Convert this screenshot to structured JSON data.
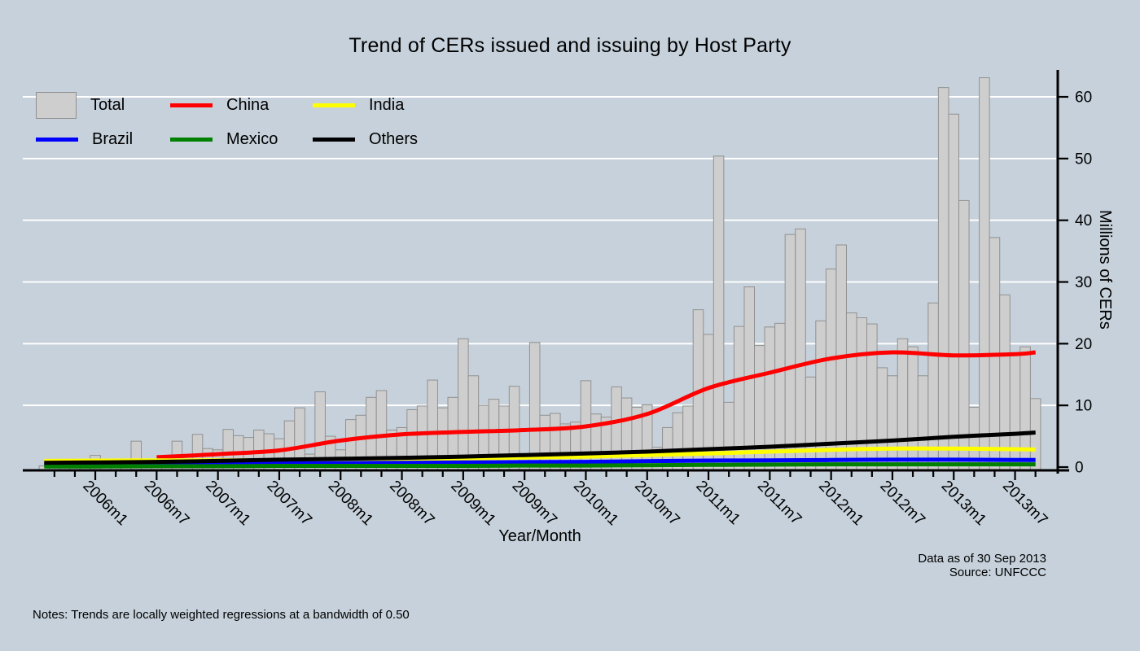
{
  "title": "Trend of CERs issued and issuing by Host Party",
  "axes": {
    "x_label": "Year/Month",
    "y_label": "Millions of CERs",
    "y_ticks": [
      0,
      10,
      20,
      30,
      40,
      50,
      60
    ],
    "x_major_tick_labels": [
      "2006m1",
      "2006m7",
      "2007m1",
      "2007m7",
      "2008m1",
      "2008m7",
      "2009m1",
      "2009m7",
      "2010m1",
      "2010m7",
      "2011m1",
      "2011m7",
      "2012m1",
      "2012m7",
      "2013m1",
      "2013m7"
    ]
  },
  "legend": {
    "rows": [
      [
        {
          "label": "Total",
          "swatch": "rect",
          "color": "#cecece"
        },
        {
          "label": "China",
          "swatch": "line",
          "color": "#ff0000"
        },
        {
          "label": "India",
          "swatch": "line",
          "color": "#ffff00"
        }
      ],
      [
        {
          "label": "Brazil",
          "swatch": "line",
          "color": "#0000ff"
        },
        {
          "label": "Mexico",
          "swatch": "line",
          "color": "#008000"
        },
        {
          "label": "Others",
          "swatch": "line",
          "color": "#000000"
        }
      ]
    ]
  },
  "notes": "Notes: Trends are locally weighted regressions at a bandwidth of 0.50",
  "source_note": [
    "Data as of 30 Sep 2013",
    "Source: UNFCCC"
  ],
  "colors": {
    "background": "#c6d1db",
    "bar_fill": "#cecece",
    "bar_border": "#919191",
    "gridline": "#ffffff",
    "axis": "#000000"
  },
  "chart_data": {
    "type": "bar+line",
    "title": "Trend of CERs issued and issuing by Host Party",
    "xlabel": "Year/Month",
    "ylabel": "Millions of CERs",
    "ylim": [
      0,
      63.5
    ],
    "grid": "horizontal-white",
    "legend_position": "top-left",
    "x": [
      "2005m8",
      "2005m9",
      "2005m10",
      "2005m11",
      "2005m12",
      "2006m1",
      "2006m2",
      "2006m3",
      "2006m4",
      "2006m5",
      "2006m6",
      "2006m7",
      "2006m8",
      "2006m9",
      "2006m10",
      "2006m11",
      "2006m12",
      "2007m1",
      "2007m2",
      "2007m3",
      "2007m4",
      "2007m5",
      "2007m6",
      "2007m7",
      "2007m8",
      "2007m9",
      "2007m10",
      "2007m11",
      "2007m12",
      "2008m1",
      "2008m2",
      "2008m3",
      "2008m4",
      "2008m5",
      "2008m6",
      "2008m7",
      "2008m8",
      "2008m9",
      "2008m10",
      "2008m11",
      "2008m12",
      "2009m1",
      "2009m2",
      "2009m3",
      "2009m4",
      "2009m5",
      "2009m6",
      "2009m7",
      "2009m8",
      "2009m9",
      "2009m10",
      "2009m11",
      "2009m12",
      "2010m1",
      "2010m2",
      "2010m3",
      "2010m4",
      "2010m5",
      "2010m6",
      "2010m7",
      "2010m8",
      "2010m9",
      "2010m10",
      "2010m11",
      "2010m12",
      "2011m1",
      "2011m2",
      "2011m3",
      "2011m4",
      "2011m5",
      "2011m6",
      "2011m7",
      "2011m8",
      "2011m9",
      "2011m10",
      "2011m11",
      "2011m12",
      "2012m1",
      "2012m2",
      "2012m3",
      "2012m4",
      "2012m5",
      "2012m6",
      "2012m7",
      "2012m8",
      "2012m9",
      "2012m10",
      "2012m11",
      "2012m12",
      "2013m1",
      "2013m2",
      "2013m3",
      "2013m4",
      "2013m5",
      "2013m6",
      "2013m7",
      "2013m8",
      "2013m9"
    ],
    "bar_series": {
      "name": "Total",
      "values": [
        0.2,
        0.3,
        0.3,
        0.4,
        0.6,
        1.9,
        0.5,
        0.8,
        1.0,
        4.2,
        1.0,
        1.1,
        1.5,
        4.2,
        2.0,
        5.3,
        3.0,
        2.8,
        6.1,
        5.1,
        4.8,
        6.0,
        5.4,
        4.6,
        7.5,
        9.6,
        2.1,
        12.2,
        5.0,
        2.8,
        7.7,
        8.4,
        11.3,
        12.4,
        6.0,
        6.4,
        9.3,
        9.9,
        14.1,
        9.6,
        11.3,
        20.8,
        14.8,
        10.0,
        11.0,
        9.9,
        13.1,
        2.1,
        20.2,
        8.4,
        8.7,
        7.0,
        7.3,
        14.0,
        8.6,
        8.1,
        13.0,
        11.2,
        9.7,
        10.1,
        3.2,
        6.4,
        8.8,
        9.9,
        25.5,
        21.5,
        50.4,
        10.5,
        22.8,
        29.2,
        19.7,
        22.7,
        23.3,
        37.7,
        38.6,
        14.6,
        23.7,
        32.1,
        36.0,
        25.0,
        24.2,
        23.2,
        16.1,
        14.8,
        20.8,
        19.5,
        14.8,
        26.6,
        61.5,
        57.2,
        43.2,
        9.7,
        63.1,
        37.2,
        27.9,
        18.4,
        19.5,
        11.1
      ]
    },
    "line_series": [
      {
        "name": "China",
        "color": "#ff0000",
        "x": [
          "2006m7",
          "2007m1",
          "2007m7",
          "2008m1",
          "2008m7",
          "2009m1",
          "2009m7",
          "2010m1",
          "2010m7",
          "2011m1",
          "2011m7",
          "2012m1",
          "2012m7",
          "2013m1",
          "2013m7",
          "2013m9"
        ],
        "values": [
          1.6,
          2.1,
          2.7,
          4.3,
          5.3,
          5.7,
          6.0,
          6.6,
          8.6,
          12.8,
          15.3,
          17.6,
          18.6,
          18.1,
          18.3,
          18.6
        ]
      },
      {
        "name": "India",
        "color": "#ffff00",
        "x": [
          "2005m8",
          "2006m1",
          "2006m7",
          "2007m1",
          "2007m7",
          "2008m1",
          "2008m7",
          "2009m1",
          "2009m7",
          "2010m1",
          "2010m7",
          "2011m1",
          "2011m7",
          "2012m1",
          "2012m7",
          "2013m1",
          "2013m7",
          "2013m9"
        ],
        "values": [
          1.0,
          1.05,
          1.1,
          1.1,
          1.1,
          1.15,
          1.3,
          1.4,
          1.55,
          1.7,
          1.95,
          2.2,
          2.5,
          2.8,
          3.0,
          3.0,
          2.9,
          2.85
        ]
      },
      {
        "name": "Brazil",
        "color": "#0000ff",
        "x": [
          "2005m8",
          "2006m1",
          "2006m7",
          "2007m1",
          "2007m7",
          "2008m1",
          "2008m7",
          "2009m1",
          "2009m7",
          "2010m1",
          "2010m7",
          "2011m1",
          "2011m7",
          "2012m1",
          "2012m7",
          "2013m1",
          "2013m7",
          "2013m9"
        ],
        "values": [
          0.35,
          0.4,
          0.5,
          0.55,
          0.6,
          0.65,
          0.7,
          0.75,
          0.8,
          0.85,
          0.95,
          1.05,
          1.1,
          1.15,
          1.2,
          1.2,
          1.15,
          1.15
        ]
      },
      {
        "name": "Mexico",
        "color": "#008000",
        "x": [
          "2005m8",
          "2006m1",
          "2006m7",
          "2007m1",
          "2007m7",
          "2008m1",
          "2008m7",
          "2009m1",
          "2009m7",
          "2010m1",
          "2010m7",
          "2011m1",
          "2011m7",
          "2012m1",
          "2012m7",
          "2013m1",
          "2013m7",
          "2013m9"
        ],
        "values": [
          0.1,
          0.1,
          0.15,
          0.15,
          0.2,
          0.2,
          0.2,
          0.2,
          0.25,
          0.25,
          0.3,
          0.35,
          0.4,
          0.45,
          0.45,
          0.45,
          0.45,
          0.45
        ]
      },
      {
        "name": "Others",
        "color": "#000000",
        "x": [
          "2005m8",
          "2006m1",
          "2006m7",
          "2007m1",
          "2007m7",
          "2008m1",
          "2008m7",
          "2009m1",
          "2009m7",
          "2010m1",
          "2010m7",
          "2011m1",
          "2011m7",
          "2012m1",
          "2012m7",
          "2013m1",
          "2013m7",
          "2013m9"
        ],
        "values": [
          0.7,
          0.75,
          0.85,
          1.0,
          1.2,
          1.35,
          1.5,
          1.7,
          1.95,
          2.2,
          2.5,
          2.9,
          3.3,
          3.8,
          4.3,
          4.9,
          5.4,
          5.6
        ]
      }
    ]
  }
}
